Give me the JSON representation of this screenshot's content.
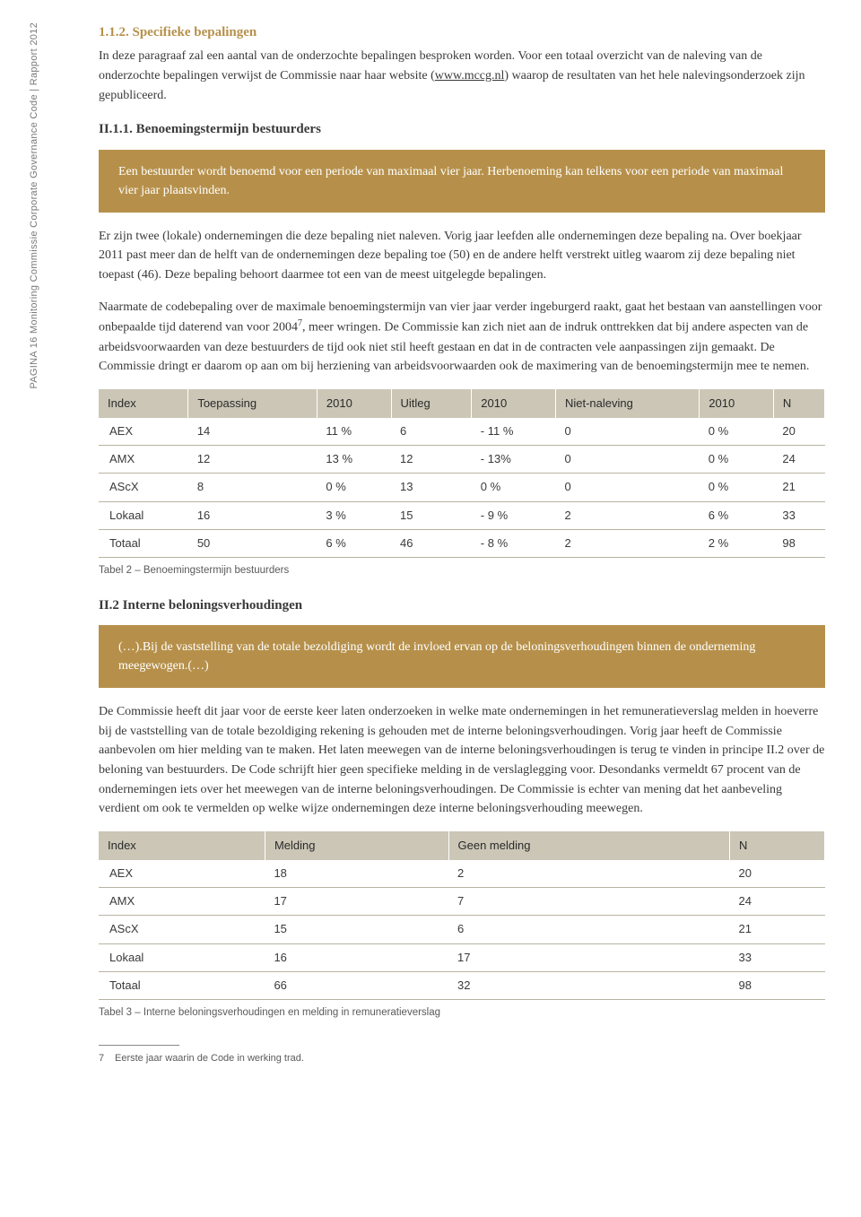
{
  "sidebar_text": "PAGINA 16   Monitoring Commissie Corporate Governance Code  |  Rapport 2012",
  "h1": "1.1.2. Specifieke bepalingen",
  "p1a": "In deze paragraaf zal een aantal van de onderzochte bepalingen besproken worden. Voor een totaal overzicht van de naleving van de onderzochte bepalingen verwijst de Commissie naar haar website (",
  "p1_link": "www.mccg.nl",
  "p1b": ") waarop de resultaten van het hele nalevingsonderzoek zijn gepubliceerd.",
  "h2": "II.1.1. Benoemingstermijn bestuurders",
  "callout1": "Een bestuurder wordt benoemd voor een periode van maximaal vier jaar. Herbenoeming kan telkens voor een periode van maximaal vier jaar plaatsvinden.",
  "p2": "Er zijn twee (lokale) ondernemingen die deze bepaling niet naleven. Vorig jaar leefden alle ondernemingen deze bepaling na. Over boekjaar 2011 past meer dan de helft van de ondernemingen deze bepaling toe (50) en de andere helft verstrekt uitleg waarom zij deze bepaling niet toepast (46). Deze bepaling behoort daarmee tot een van de meest uitgelegde bepalingen.",
  "p3a": "Naarmate de codebepaling over de maximale benoemingstermijn van vier jaar verder ingeburgerd raakt, gaat het bestaan van aanstellingen voor onbepaalde tijd daterend van voor 2004",
  "p3_sup": "7",
  "p3b": ", meer wringen. De Commissie kan zich niet aan de indruk onttrekken dat bij andere aspecten van de arbeidsvoorwaarden van deze bestuurders de tijd ook niet stil heeft gestaan en dat in de contracten vele aanpassingen zijn gemaakt. De Commissie dringt er daarom op aan om bij herziening van arbeidsvoorwaarden ook de maximering van de benoemingstermijn mee te nemen.",
  "table1": {
    "headers": [
      "Index",
      "Toepassing",
      "2010",
      "Uitleg",
      "2010",
      "Niet-naleving",
      "2010",
      "N"
    ],
    "rows": [
      [
        "AEX",
        "14",
        "11 %",
        "6",
        "- 11 %",
        "0",
        "0 %",
        "20"
      ],
      [
        "AMX",
        "12",
        "13 %",
        "12",
        "- 13%",
        "0",
        "0 %",
        "24"
      ],
      [
        "AScX",
        "8",
        "0 %",
        "13",
        "0 %",
        "0",
        "0 %",
        "21"
      ],
      [
        "Lokaal",
        "16",
        "3 %",
        "15",
        "- 9 %",
        "2",
        "6 %",
        "33"
      ],
      [
        "Totaal",
        "50",
        "6 %",
        "46",
        "- 8 %",
        "2",
        "2 %",
        "98"
      ]
    ]
  },
  "caption1": "Tabel 2 – Benoemingstermijn bestuurders",
  "h3": "II.2 Interne beloningsverhoudingen",
  "callout2": "(…).Bij de vaststelling van de totale bezoldiging wordt de invloed ervan op de beloningsverhoudingen binnen de onderneming meegewogen.(…)",
  "p4": "De Commissie heeft dit jaar voor de eerste keer laten onderzoeken in welke mate ondernemingen in het remuneratieverslag melden in hoeverre bij de vaststelling van de totale bezoldiging rekening is gehouden met de interne beloningsverhoudingen. Vorig jaar heeft de Commissie aanbevolen om hier melding van te maken. Het laten meewegen van de interne beloningsverhoudingen is terug te vinden in principe II.2 over de beloning van bestuurders. De Code schrijft hier geen specifieke melding in de verslaglegging voor. Desondanks vermeldt 67 procent van de ondernemingen iets over het meewegen van de interne beloningsverhoudingen. De Commissie is echter van mening dat het aanbeveling verdient om ook te vermelden op welke wijze ondernemingen deze interne beloningsverhouding meewegen.",
  "table2": {
    "headers": [
      "Index",
      "Melding",
      "Geen melding",
      "N"
    ],
    "rows": [
      [
        "AEX",
        "18",
        "2",
        "20"
      ],
      [
        "AMX",
        "17",
        "7",
        "24"
      ],
      [
        "AScX",
        "15",
        "6",
        "21"
      ],
      [
        "Lokaal",
        "16",
        "17",
        "33"
      ],
      [
        "Totaal",
        "66",
        "32",
        "98"
      ]
    ]
  },
  "caption2": "Tabel 3 – Interne beloningsverhoudingen en melding in remuneratieverslag",
  "footnote_num": "7",
  "footnote_text": "Eerste jaar waarin de Code in werking trad."
}
